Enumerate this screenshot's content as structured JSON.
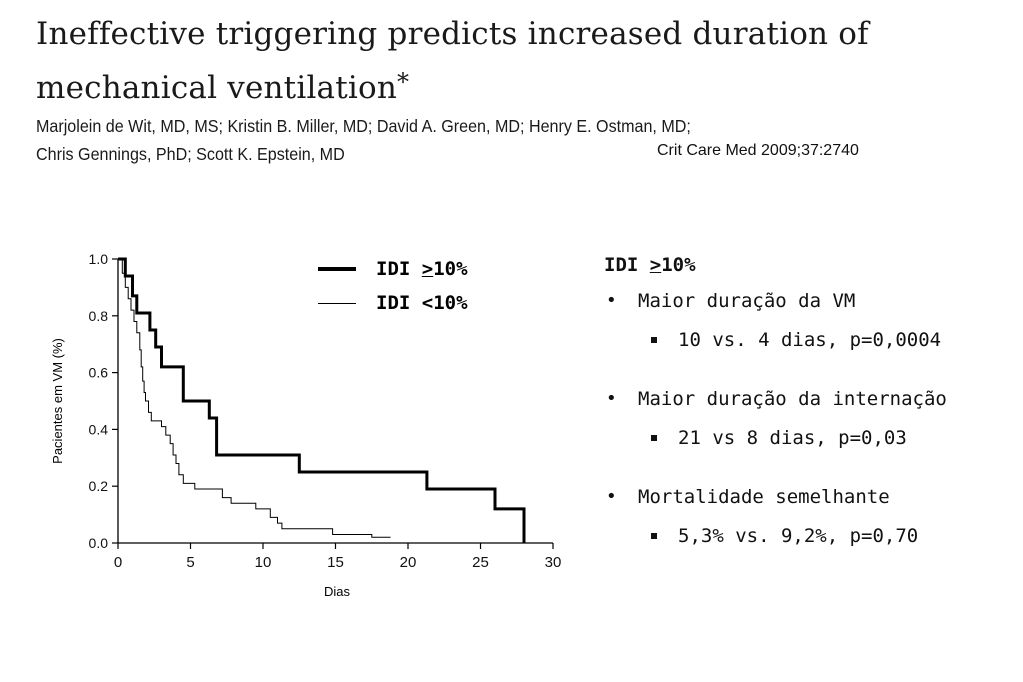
{
  "paper": {
    "title": "Ineffective triggering predicts increased duration of mechanical ventilation",
    "title_mark": "*",
    "authors_line1": "Marjolein de Wit, MD, MS; Kristin B. Miller, MD; David A. Green, MD; Henry E. Ostman, MD;",
    "authors_line2": "Chris Gennings, PhD; Scott K. Epstein, MD",
    "citation": "Crit Care Med 2009;37:2740"
  },
  "legend": {
    "high_prefix": "IDI ",
    "high_symbol": ">",
    "high_suffix": "10%",
    "low_label": "IDI <10%"
  },
  "summary": {
    "head_prefix": "IDI ",
    "head_symbol": ">",
    "head_suffix": "10%",
    "bullets": [
      {
        "text": "Maior duração da VM",
        "sub": "10 vs. 4 dias, p=0,0004"
      },
      {
        "text": "Maior duração da internação",
        "sub": "21 vs 8 dias, p=0,03"
      },
      {
        "text": "Mortalidade semelhante",
        "sub": "5,3% vs. 9,2%, p=0,70"
      }
    ]
  },
  "chart_data": {
    "type": "line",
    "step": true,
    "xlabel": "Dias",
    "ylabel": "Pacientes em VM (%)",
    "xlim": [
      0,
      30
    ],
    "ylim": [
      0,
      1.0
    ],
    "x_ticks": [
      "0",
      "5",
      "10",
      "15",
      "20",
      "25",
      "30"
    ],
    "y_ticks": [
      "0.0",
      "0.2",
      "0.4",
      "0.6",
      "0.8",
      "1.0"
    ],
    "series": [
      {
        "name": "IDI >10%",
        "style": "thick",
        "points": [
          [
            0,
            1.0
          ],
          [
            0.5,
            1.0
          ],
          [
            0.5,
            0.94
          ],
          [
            1.0,
            0.94
          ],
          [
            1.0,
            0.87
          ],
          [
            1.3,
            0.87
          ],
          [
            1.3,
            0.81
          ],
          [
            2.2,
            0.81
          ],
          [
            2.2,
            0.75
          ],
          [
            2.6,
            0.75
          ],
          [
            2.6,
            0.69
          ],
          [
            3.0,
            0.69
          ],
          [
            3.0,
            0.62
          ],
          [
            4.5,
            0.62
          ],
          [
            4.5,
            0.5
          ],
          [
            6.3,
            0.5
          ],
          [
            6.3,
            0.44
          ],
          [
            6.8,
            0.44
          ],
          [
            6.8,
            0.31
          ],
          [
            12.5,
            0.31
          ],
          [
            12.5,
            0.25
          ],
          [
            21.3,
            0.25
          ],
          [
            21.3,
            0.19
          ],
          [
            26.0,
            0.19
          ],
          [
            26.0,
            0.12
          ],
          [
            28.0,
            0.12
          ],
          [
            28.0,
            0.0
          ]
        ]
      },
      {
        "name": "IDI <10%",
        "style": "thin",
        "points": [
          [
            0,
            1.0
          ],
          [
            0.3,
            1.0
          ],
          [
            0.3,
            0.95
          ],
          [
            0.5,
            0.95
          ],
          [
            0.5,
            0.9
          ],
          [
            0.7,
            0.9
          ],
          [
            0.7,
            0.86
          ],
          [
            0.9,
            0.86
          ],
          [
            0.9,
            0.82
          ],
          [
            1.1,
            0.82
          ],
          [
            1.1,
            0.78
          ],
          [
            1.3,
            0.78
          ],
          [
            1.3,
            0.74
          ],
          [
            1.5,
            0.74
          ],
          [
            1.5,
            0.68
          ],
          [
            1.6,
            0.68
          ],
          [
            1.6,
            0.62
          ],
          [
            1.7,
            0.62
          ],
          [
            1.7,
            0.57
          ],
          [
            1.8,
            0.57
          ],
          [
            1.8,
            0.53
          ],
          [
            1.9,
            0.53
          ],
          [
            1.9,
            0.5
          ],
          [
            2.1,
            0.5
          ],
          [
            2.1,
            0.46
          ],
          [
            2.3,
            0.46
          ],
          [
            2.3,
            0.43
          ],
          [
            3.0,
            0.43
          ],
          [
            3.0,
            0.41
          ],
          [
            3.3,
            0.41
          ],
          [
            3.3,
            0.38
          ],
          [
            3.6,
            0.38
          ],
          [
            3.6,
            0.35
          ],
          [
            3.8,
            0.35
          ],
          [
            3.8,
            0.31
          ],
          [
            4.0,
            0.31
          ],
          [
            4.0,
            0.28
          ],
          [
            4.2,
            0.28
          ],
          [
            4.2,
            0.24
          ],
          [
            4.5,
            0.24
          ],
          [
            4.5,
            0.21
          ],
          [
            5.3,
            0.21
          ],
          [
            5.3,
            0.19
          ],
          [
            7.2,
            0.19
          ],
          [
            7.2,
            0.16
          ],
          [
            7.8,
            0.16
          ],
          [
            7.8,
            0.14
          ],
          [
            9.5,
            0.14
          ],
          [
            9.5,
            0.12
          ],
          [
            10.5,
            0.12
          ],
          [
            10.5,
            0.09
          ],
          [
            11.0,
            0.09
          ],
          [
            11.0,
            0.07
          ],
          [
            11.3,
            0.07
          ],
          [
            11.3,
            0.05
          ],
          [
            14.8,
            0.05
          ],
          [
            14.8,
            0.03
          ],
          [
            17.5,
            0.03
          ],
          [
            17.5,
            0.02
          ],
          [
            18.8,
            0.02
          ]
        ]
      }
    ]
  }
}
